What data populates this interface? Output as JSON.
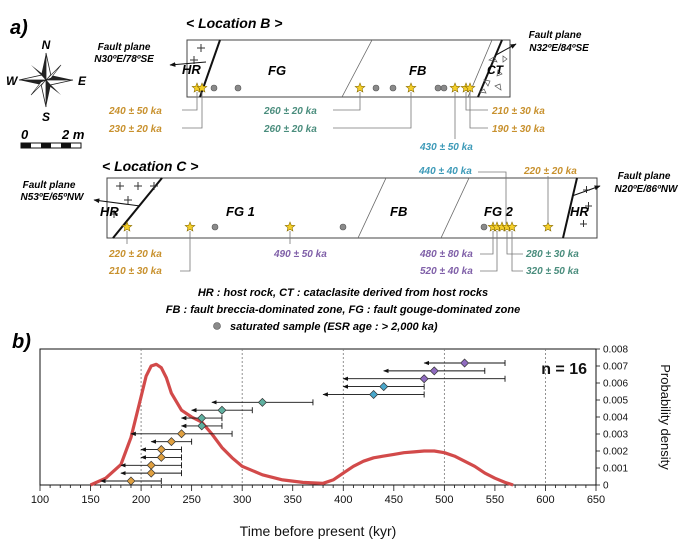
{
  "panel_a": {
    "label": "a)",
    "compass": {
      "n": "N",
      "s": "S",
      "e": "E",
      "w": "W"
    },
    "scale": {
      "zero": "0",
      "dist": "2 m"
    },
    "location_b": {
      "title": "< Location B >",
      "left_fault": {
        "title": "Fault plane",
        "orient": "N30ºE/78ºSE"
      },
      "right_fault": {
        "title": "Fault plane",
        "orient": "N32ºE/84ºSE"
      },
      "zones": {
        "hr": "HR",
        "fg": "FG",
        "fb": "FB",
        "ct": "CT"
      },
      "ages": [
        {
          "text": "240 ± 50 ka",
          "color": "#c8912e"
        },
        {
          "text": "230 ± 20 ka",
          "color": "#c8912e"
        },
        {
          "text": "260 ± 20 ka",
          "color": "#4a8d7d"
        },
        {
          "text": "260 ± 20 ka",
          "color": "#4a8d7d"
        },
        {
          "text": "430 ± 50 ka",
          "color": "#3d9ab8"
        },
        {
          "text": "210 ± 30 ka",
          "color": "#c8912e"
        },
        {
          "text": "190 ± 30 ka",
          "color": "#c8912e"
        }
      ]
    },
    "location_c": {
      "title": "< Location C >",
      "left_fault": {
        "title": "Fault plane",
        "orient": "N53ºE/65ºNW"
      },
      "right_fault": {
        "title": "Fault plane",
        "orient": "N20ºE/86ºNW"
      },
      "zones": {
        "hr_left": "HR",
        "fg1": "FG 1",
        "fb": "FB",
        "fg2": "FG 2",
        "hr_right": "HR"
      },
      "ages": [
        {
          "text": "440 ± 40 ka",
          "color": "#3d9ab8"
        },
        {
          "text": "220 ± 20 ka",
          "color": "#c8912e"
        },
        {
          "text": "220 ± 20 ka",
          "color": "#c8912e"
        },
        {
          "text": "210 ± 30 ka",
          "color": "#c8912e"
        },
        {
          "text": "490 ± 50 ka",
          "color": "#7f5fa8"
        },
        {
          "text": "480 ± 80 ka",
          "color": "#7f5fa8"
        },
        {
          "text": "520 ± 40 ka",
          "color": "#7f5fa8"
        },
        {
          "text": "280 ± 30 ka",
          "color": "#4a8d7d"
        },
        {
          "text": "320 ± 50 ka",
          "color": "#4a8d7d"
        }
      ]
    },
    "legend": {
      "line1": "HR : host rock, CT : cataclasite derived from host rocks",
      "line2": "FB : fault breccia-dominated zone, FG : fault gouge-dominated zone",
      "line3": "saturated sample (ESR age : > 2,000 ka)"
    }
  },
  "panel_b": {
    "label": "b)",
    "n_label": "n = 16"
  },
  "chart_data": {
    "type": "scatter",
    "xlabel": "Time before present (kyr)",
    "ylabel": "Probability density",
    "xlim": [
      100,
      650
    ],
    "xticks": [
      100,
      150,
      200,
      250,
      300,
      350,
      400,
      450,
      500,
      550,
      600,
      650
    ],
    "ylim": [
      0,
      0.008
    ],
    "yticks": [
      "0",
      "0.001",
      "0.002",
      "0.003",
      "0.004",
      "0.005",
      "0.006",
      "0.007",
      "0.008"
    ],
    "dashed_x": [
      200,
      300,
      400,
      500,
      600
    ],
    "samples": [
      {
        "age": 190,
        "err": 30,
        "color": "#e0a040"
      },
      {
        "age": 210,
        "err": 30,
        "color": "#e0a040"
      },
      {
        "age": 210,
        "err": 30,
        "color": "#e0a040"
      },
      {
        "age": 220,
        "err": 20,
        "color": "#e0a040"
      },
      {
        "age": 220,
        "err": 20,
        "color": "#e0a040"
      },
      {
        "age": 230,
        "err": 20,
        "color": "#e0a040"
      },
      {
        "age": 240,
        "err": 50,
        "color": "#e0a040"
      },
      {
        "age": 260,
        "err": 20,
        "color": "#5fb0a0"
      },
      {
        "age": 260,
        "err": 20,
        "color": "#5fb0a0"
      },
      {
        "age": 280,
        "err": 30,
        "color": "#5fb0a0"
      },
      {
        "age": 320,
        "err": 50,
        "color": "#5fb0a0"
      },
      {
        "age": 430,
        "err": 50,
        "color": "#4aa8cc"
      },
      {
        "age": 440,
        "err": 40,
        "color": "#4aa8cc"
      },
      {
        "age": 480,
        "err": 80,
        "color": "#8f6bbf"
      },
      {
        "age": 490,
        "err": 50,
        "color": "#8f6bbf"
      },
      {
        "age": 520,
        "err": 40,
        "color": "#8f6bbf"
      }
    ],
    "density": {
      "x": [
        150,
        165,
        180,
        190,
        200,
        205,
        210,
        215,
        220,
        225,
        230,
        240,
        250,
        260,
        270,
        280,
        290,
        300,
        320,
        340,
        360,
        380,
        390,
        400,
        410,
        420,
        430,
        440,
        450,
        460,
        470,
        480,
        490,
        500,
        510,
        520,
        530,
        540,
        550,
        560,
        568
      ],
      "y": [
        0,
        0.0004,
        0.0012,
        0.0028,
        0.0052,
        0.0064,
        0.007,
        0.0071,
        0.0069,
        0.0063,
        0.0054,
        0.0044,
        0.004,
        0.0037,
        0.003,
        0.0022,
        0.0016,
        0.0011,
        0.0006,
        0.0003,
        0.00015,
        0.0001,
        0.0003,
        0.0007,
        0.0011,
        0.0014,
        0.0016,
        0.0017,
        0.0018,
        0.0019,
        0.00195,
        0.002,
        0.002,
        0.0019,
        0.0017,
        0.0014,
        0.0011,
        0.0007,
        0.0004,
        0.00015,
        0
      ]
    },
    "line_color": "#d24a4a"
  }
}
